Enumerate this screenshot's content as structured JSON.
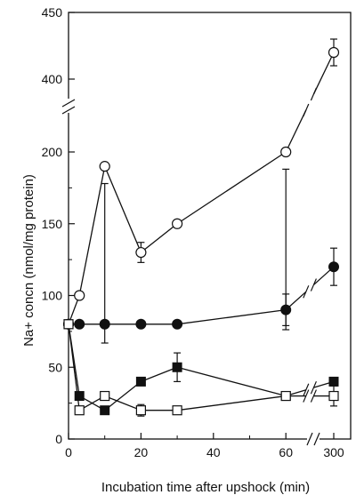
{
  "chart_data": {
    "type": "line",
    "xlabel": "Incubation time after upshock (min)",
    "ylabel": "Na+ concn (nmol/mg protein)",
    "x_axis": {
      "range": [
        0,
        70
      ],
      "broken": true,
      "break_after": 70,
      "ticks": [
        {
          "value": 0,
          "label": "0"
        },
        {
          "value": 20,
          "label": "20"
        },
        {
          "value": 40,
          "label": "40"
        },
        {
          "value": 60,
          "label": "60"
        },
        {
          "value": 300,
          "label": "300"
        }
      ]
    },
    "y_axis": {
      "range": [
        0,
        450
      ],
      "broken": true,
      "break_between": [
        200,
        400
      ],
      "ticks": [
        {
          "value": 0,
          "label": "0"
        },
        {
          "value": 50,
          "label": "50"
        },
        {
          "value": 100,
          "label": "100"
        },
        {
          "value": 150,
          "label": "150"
        },
        {
          "value": 200,
          "label": "200"
        },
        {
          "value": 400,
          "label": "400"
        },
        {
          "value": 450,
          "label": "450"
        }
      ]
    },
    "grid": false,
    "legend": "none",
    "series": [
      {
        "marker": "open-circle",
        "points": [
          {
            "x": 0,
            "y": 80
          },
          {
            "x": 3,
            "y": 100
          },
          {
            "x": 10,
            "y": 190,
            "err": 12
          },
          {
            "x": 20,
            "y": 130,
            "err": 7
          },
          {
            "x": 30,
            "y": 150
          },
          {
            "x": 60,
            "y": 200,
            "err": 12
          },
          {
            "x": 300,
            "y": 420,
            "err": 10
          }
        ]
      },
      {
        "marker": "filled-circle",
        "points": [
          {
            "x": 0,
            "y": 80
          },
          {
            "x": 3,
            "y": 80
          },
          {
            "x": 10,
            "y": 80
          },
          {
            "x": 20,
            "y": 80
          },
          {
            "x": 30,
            "y": 80
          },
          {
            "x": 60,
            "y": 90,
            "err": 11
          },
          {
            "x": 300,
            "y": 120,
            "err": 13
          }
        ]
      },
      {
        "marker": "filled-square",
        "points": [
          {
            "x": 0,
            "y": 80
          },
          {
            "x": 3,
            "y": 30
          },
          {
            "x": 10,
            "y": 20
          },
          {
            "x": 20,
            "y": 40
          },
          {
            "x": 30,
            "y": 50,
            "err": 10
          },
          {
            "x": 60,
            "y": 30,
            "err": 3
          },
          {
            "x": 300,
            "y": 40
          }
        ]
      },
      {
        "marker": "open-square",
        "points": [
          {
            "x": 0,
            "y": 80
          },
          {
            "x": 3,
            "y": 20
          },
          {
            "x": 10,
            "y": 30
          },
          {
            "x": 20,
            "y": 20,
            "err": 4
          },
          {
            "x": 30,
            "y": 20
          },
          {
            "x": 60,
            "y": 30,
            "err": 3
          },
          {
            "x": 300,
            "y": 30,
            "err": 7
          }
        ]
      }
    ]
  }
}
